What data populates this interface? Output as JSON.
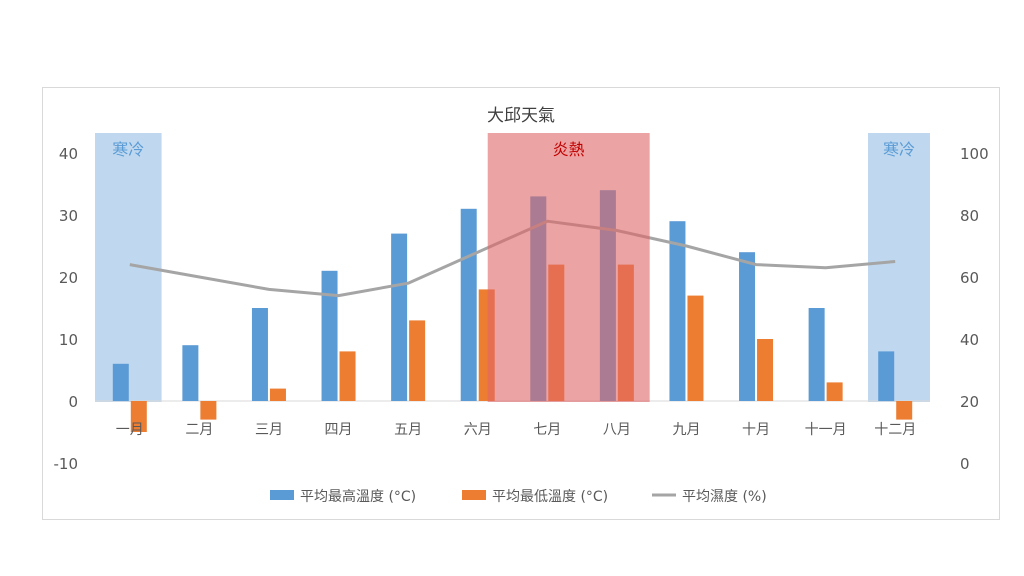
{
  "chart_data": {
    "type": "bar+line",
    "title": "大邱天氣",
    "categories": [
      "一月",
      "二月",
      "三月",
      "四月",
      "五月",
      "六月",
      "七月",
      "八月",
      "九月",
      "十月",
      "十一月",
      "十二月"
    ],
    "series": [
      {
        "name": "平均最高溫度 (°C)",
        "type": "bar",
        "axis": "left",
        "color": "#5b9bd5",
        "values": [
          6,
          9,
          15,
          21,
          27,
          31,
          33,
          34,
          29,
          24,
          15,
          8
        ]
      },
      {
        "name": "平均最低溫度 (°C)",
        "type": "bar",
        "axis": "left",
        "color": "#ed7d31",
        "values": [
          -5,
          -3,
          2,
          8,
          13,
          18,
          22,
          22,
          17,
          10,
          3,
          -3
        ]
      },
      {
        "name": "平均濕度 (%)",
        "type": "line",
        "axis": "right",
        "color": "#a5a5a5",
        "values": [
          64,
          60,
          56,
          54,
          58,
          68,
          78,
          75,
          70,
          64,
          63,
          65
        ]
      }
    ],
    "left_axis": {
      "range": [
        -10,
        40
      ],
      "ticks": [
        "-10",
        "0",
        "10",
        "20",
        "30",
        "40"
      ]
    },
    "right_axis": {
      "range": [
        0,
        100
      ],
      "ticks": [
        "0",
        "20",
        "40",
        "60",
        "80",
        "100"
      ]
    },
    "annotations": [
      {
        "label": "寒冷",
        "color": "#9dc3e6",
        "text_color": "#5b9bd5",
        "from": "一月",
        "to": "一月"
      },
      {
        "label": "炎熱",
        "color": "#e06666",
        "text_color": "#c00000",
        "from": "六月",
        "to": "八月"
      },
      {
        "label": "寒冷",
        "color": "#9dc3e6",
        "text_color": "#5b9bd5",
        "from": "十二月",
        "to": "十二月"
      }
    ],
    "legend": "bottom",
    "grid": false
  }
}
